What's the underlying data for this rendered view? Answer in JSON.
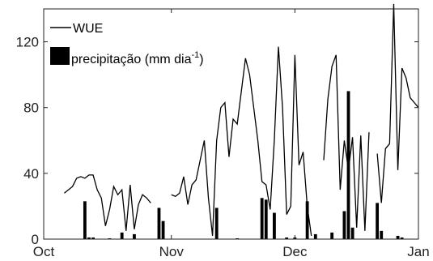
{
  "chart_data": {
    "type": "bar+line",
    "title": "",
    "xlabel": "",
    "ylabel": "",
    "xlim": [
      "2017-10-01",
      "2017-12-31"
    ],
    "ylim": [
      0,
      140
    ],
    "x_ticks": [
      {
        "date": "2017-10-01",
        "label": "Oct"
      },
      {
        "date": "2017-11-01",
        "label": "Nov"
      },
      {
        "date": "2017-12-01",
        "label": "Dec"
      },
      {
        "date": "2017-12-31",
        "label": "Jan"
      }
    ],
    "y_ticks": [
      0,
      40,
      80,
      120
    ],
    "grid": false,
    "legend_placement": "top-left",
    "legend": {
      "line_label": "WUE",
      "bar_label_main": "precipitação (mm dia",
      "bar_label_sup": "-1",
      "bar_label_close": ")"
    },
    "series": [
      {
        "name": "WUE",
        "type": "line",
        "color": "#000000",
        "segments": [
          [
            [
              "2017-10-06",
              28
            ],
            [
              "2017-10-08",
              32
            ],
            [
              "2017-10-09",
              37
            ],
            [
              "2017-10-10",
              38
            ],
            [
              "2017-10-11",
              37
            ],
            [
              "2017-10-12",
              39
            ],
            [
              "2017-10-13",
              39
            ],
            [
              "2017-10-14",
              30
            ],
            [
              "2017-10-15",
              25
            ],
            [
              "2017-10-16",
              8
            ],
            [
              "2017-10-17",
              18
            ],
            [
              "2017-10-18",
              32
            ],
            [
              "2017-10-19",
              27
            ],
            [
              "2017-10-20",
              30
            ],
            [
              "2017-10-21",
              5
            ],
            [
              "2017-10-22",
              33
            ],
            [
              "2017-10-23",
              6
            ],
            [
              "2017-10-24",
              21
            ],
            [
              "2017-10-25",
              27
            ],
            [
              "2017-10-26",
              25
            ],
            [
              "2017-10-27",
              22
            ]
          ],
          [
            [
              "2017-11-01",
              27
            ],
            [
              "2017-11-02",
              26
            ],
            [
              "2017-11-03",
              28
            ],
            [
              "2017-11-04",
              38
            ],
            [
              "2017-11-05",
              21
            ],
            [
              "2017-11-06",
              33
            ],
            [
              "2017-11-07",
              36
            ],
            [
              "2017-11-08",
              48
            ],
            [
              "2017-11-09",
              60
            ],
            [
              "2017-11-10",
              25
            ],
            [
              "2017-11-11",
              2
            ],
            [
              "2017-11-12",
              60
            ],
            [
              "2017-11-13",
              80
            ],
            [
              "2017-11-14",
              83
            ],
            [
              "2017-11-15",
              50
            ],
            [
              "2017-11-16",
              73
            ],
            [
              "2017-11-17",
              70
            ],
            [
              "2017-11-18",
              90
            ],
            [
              "2017-11-19",
              110
            ],
            [
              "2017-11-20",
              100
            ],
            [
              "2017-11-21",
              80
            ],
            [
              "2017-11-22",
              60
            ],
            [
              "2017-11-23",
              35
            ],
            [
              "2017-11-24",
              33
            ],
            [
              "2017-11-25",
              18
            ],
            [
              "2017-11-26",
              60
            ],
            [
              "2017-11-27",
              117
            ],
            [
              "2017-11-28",
              80
            ],
            [
              "2017-11-29",
              15
            ],
            [
              "2017-11-30",
              20
            ],
            [
              "2017-12-01",
              112
            ],
            [
              "2017-12-02",
              45
            ],
            [
              "2017-12-03",
              53
            ],
            [
              "2017-12-04",
              20
            ],
            [
              "2017-12-05",
              2
            ]
          ],
          [
            [
              "2017-12-08",
              48
            ],
            [
              "2017-12-09",
              85
            ],
            [
              "2017-12-10",
              105
            ],
            [
              "2017-12-11",
              112
            ],
            [
              "2017-12-12",
              30
            ],
            [
              "2017-12-13",
              60
            ],
            [
              "2017-12-14",
              42
            ],
            [
              "2017-12-15",
              62
            ],
            [
              "2017-12-16",
              7
            ],
            [
              "2017-12-17",
              63
            ],
            [
              "2017-12-18",
              5
            ],
            [
              "2017-12-19",
              65
            ]
          ],
          [
            [
              "2017-12-21",
              52
            ],
            [
              "2017-12-22",
              22
            ],
            [
              "2017-12-23",
              55
            ],
            [
              "2017-12-24",
              58
            ],
            [
              "2017-12-25",
              143
            ],
            [
              "2017-12-26",
              42
            ],
            [
              "2017-12-27",
              104
            ],
            [
              "2017-12-28",
              98
            ],
            [
              "2017-12-29",
              86
            ],
            [
              "2017-12-30",
              83
            ],
            [
              "2017-12-31",
              80
            ]
          ]
        ]
      },
      {
        "name": "precipitação",
        "type": "bar",
        "color": "#000000",
        "points": [
          [
            "2017-10-11",
            23
          ],
          [
            "2017-10-12",
            1
          ],
          [
            "2017-10-13",
            1
          ],
          [
            "2017-10-17",
            0.5
          ],
          [
            "2017-10-20",
            4
          ],
          [
            "2017-10-23",
            3
          ],
          [
            "2017-10-29",
            19
          ],
          [
            "2017-10-30",
            11
          ],
          [
            "2017-11-12",
            19
          ],
          [
            "2017-11-17",
            0.5
          ],
          [
            "2017-11-23",
            25
          ],
          [
            "2017-11-24",
            24
          ],
          [
            "2017-11-26",
            16
          ],
          [
            "2017-11-29",
            1
          ],
          [
            "2017-12-01",
            1
          ],
          [
            "2017-12-04",
            23
          ],
          [
            "2017-12-06",
            3
          ],
          [
            "2017-12-10",
            4
          ],
          [
            "2017-12-13",
            17
          ],
          [
            "2017-12-14",
            90
          ],
          [
            "2017-12-15",
            7
          ],
          [
            "2017-12-21",
            22
          ],
          [
            "2017-12-22",
            5
          ],
          [
            "2017-12-26",
            2
          ],
          [
            "2017-12-27",
            1
          ]
        ]
      }
    ]
  }
}
